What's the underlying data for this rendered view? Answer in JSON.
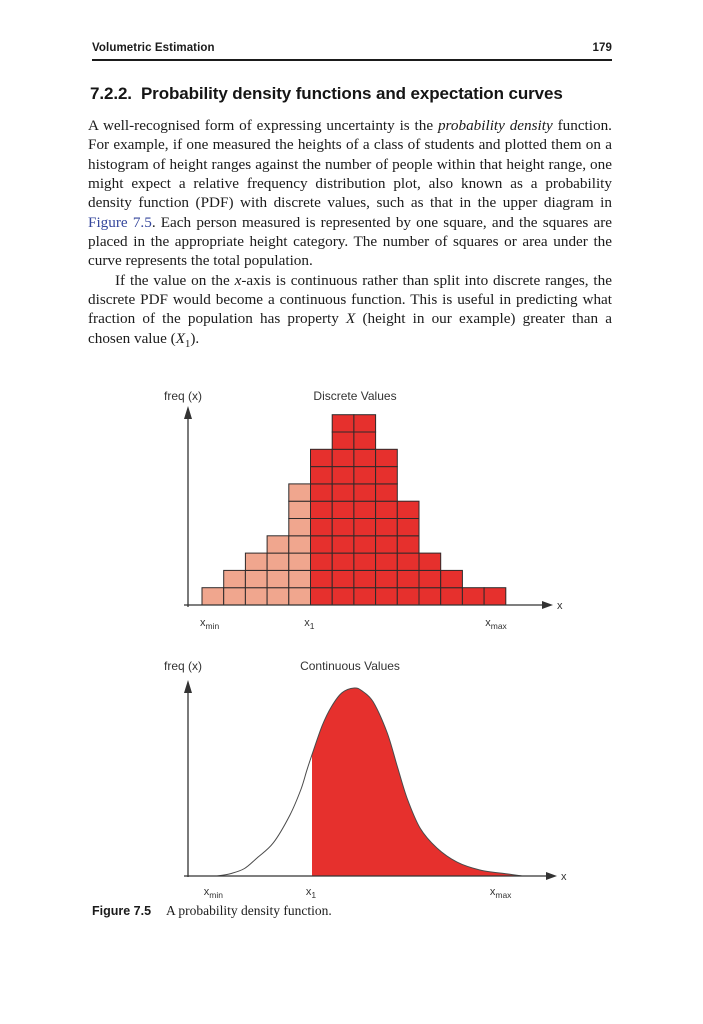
{
  "page": {
    "header": {
      "running_title": "Volumetric Estimation",
      "page_number": "179"
    },
    "section": {
      "number": "7.2.2.",
      "title": "Probability density functions and expectation curves"
    },
    "paragraph1": {
      "t1": "A well-recognised form of expressing uncertainty is the ",
      "i1": "probability density",
      "t2": " function. For example, if one measured the heights of a class of students and plotted them on a histogram of height ranges against the number of people within that height range, one might expect a relative frequency distribution plot, also known as a probability density function (PDF) with discrete values, such as that in the upper diagram in ",
      "link": "Figure 7.5",
      "t3": ". Each person measured is represented by one square, and the squares are placed in the appropriate height category. The number of squares or area under the curve represents the total population."
    },
    "paragraph2": {
      "t1": "If the value on the ",
      "i1": "x",
      "t2": "-axis is continuous rather than split into discrete ranges, the discrete PDF would become a continuous function. This is useful in predicting what fraction of the population has property ",
      "i2": "X",
      "t3": " (height in our example) greater than a chosen value (",
      "i3": "X",
      "sub": "1",
      "t4": ")."
    },
    "caption": {
      "label": "Figure 7.5",
      "text": "A probability density function."
    }
  },
  "colors": {
    "page_bg": "#ffffff",
    "text": "#1b1b1b",
    "link": "#35479c",
    "axis": "#333333",
    "axis_text": "#333333"
  },
  "chart_data": [
    {
      "type": "bar",
      "title": "Discrete Values",
      "ylabel": "freq (x)",
      "xlabel": "x",
      "description": "Histogram built of unit squares, one square per person; bars left of x1 are light pink, bars from x1 upward are red",
      "values": [
        1,
        2,
        3,
        4,
        7,
        9,
        11,
        11,
        9,
        6,
        3,
        2,
        1,
        1
      ],
      "split_index": 5,
      "left_color": "#f0a68e",
      "right_color": "#e6302d",
      "square_stroke": "#2e2a2a",
      "ylim": [
        0,
        11
      ],
      "ticks": [
        {
          "main": "x",
          "sub": "min",
          "pos": 0.35
        },
        {
          "main": "x",
          "sub": "1",
          "pos": 4.95
        },
        {
          "main": "x",
          "sub": "max",
          "pos": 13.55
        }
      ]
    },
    {
      "type": "area",
      "title": "Continuous Values",
      "ylabel": "freq (x)",
      "xlabel": "x",
      "description": "Continuous probability density curve; area to the right of x1 is filled red, left part is outline only",
      "threshold_u": 0.3115,
      "fill_color": "#e6302d",
      "line_color": "#4a4a4a",
      "curve_points": [
        [
          0.0,
          0.0
        ],
        [
          0.045,
          0.013
        ],
        [
          0.09,
          0.04
        ],
        [
          0.131,
          0.096
        ],
        [
          0.184,
          0.175
        ],
        [
          0.239,
          0.324
        ],
        [
          0.275,
          0.46
        ],
        [
          0.295,
          0.565
        ],
        [
          0.3115,
          0.645
        ],
        [
          0.345,
          0.8
        ],
        [
          0.375,
          0.9
        ],
        [
          0.41,
          0.975
        ],
        [
          0.45,
          1.0
        ],
        [
          0.475,
          0.985
        ],
        [
          0.512,
          0.926
        ],
        [
          0.557,
          0.766
        ],
        [
          0.59,
          0.59
        ],
        [
          0.623,
          0.415
        ],
        [
          0.666,
          0.255
        ],
        [
          0.721,
          0.149
        ],
        [
          0.787,
          0.074
        ],
        [
          0.862,
          0.032
        ],
        [
          0.951,
          0.011
        ],
        [
          1.0,
          0.0
        ]
      ],
      "ticks": [
        {
          "main": "x",
          "sub": "min",
          "u": -0.012
        },
        {
          "main": "x",
          "sub": "1",
          "u": 0.308
        },
        {
          "main": "x",
          "sub": "max",
          "u": 0.93
        }
      ]
    }
  ]
}
